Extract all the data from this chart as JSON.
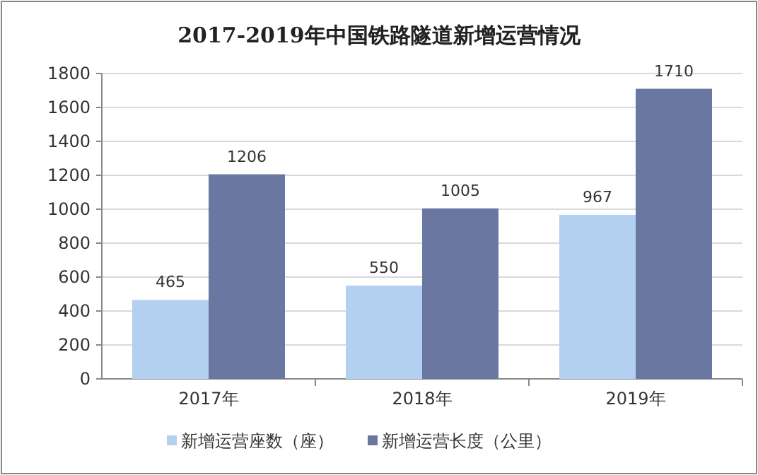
{
  "chart_data": {
    "type": "bar",
    "title": "2017-2019年中国铁路隧道新增运营情况",
    "categories": [
      "2017年",
      "2018年",
      "2019年"
    ],
    "series": [
      {
        "name": "新增运营座数（座）",
        "color": "#b4d0f0",
        "values": [
          465,
          550,
          967
        ]
      },
      {
        "name": "新增运营长度（公里）",
        "color": "#6a77a0",
        "values": [
          1206,
          1005,
          1710
        ]
      }
    ],
    "ylim": [
      0,
      1800
    ],
    "yticks": [
      0,
      200,
      400,
      600,
      800,
      1000,
      1200,
      1400,
      1600,
      1800
    ],
    "grid": "y",
    "legend": "bottom",
    "data_labels": true
  }
}
